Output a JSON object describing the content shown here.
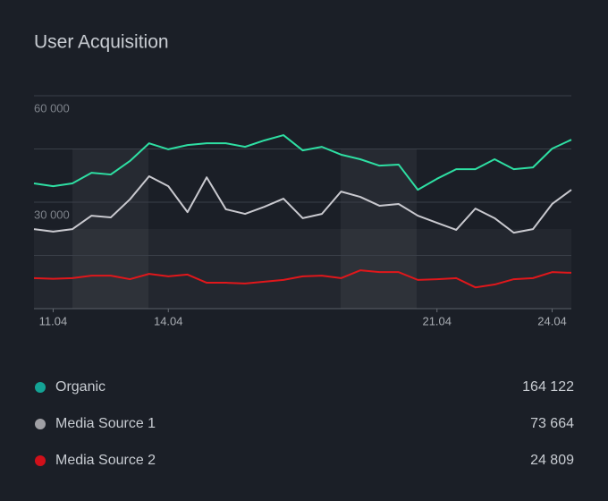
{
  "chart_data": {
    "type": "line",
    "title": "User Acquisition",
    "categories": [
      null,
      "11.04",
      null,
      null,
      null,
      null,
      null,
      "14.04",
      null,
      null,
      null,
      null,
      null,
      null,
      null,
      null,
      null,
      null,
      null,
      null,
      null,
      "21.04",
      null,
      null,
      null,
      null,
      null,
      "24.04",
      null
    ],
    "ylim": [
      0,
      60000
    ],
    "yticks": [
      {
        "value": 30000,
        "label": "30 000"
      },
      {
        "value": 60000,
        "label": "60 000"
      }
    ],
    "minor_yticks": [
      0,
      15000,
      45000
    ],
    "grid": true,
    "series": [
      {
        "name": "Organic",
        "color": "#2edfa3",
        "legend_color": "#14a395",
        "total": 164122,
        "total_label": "164 122",
        "values": [
          35300,
          34500,
          35300,
          38300,
          37800,
          41600,
          46600,
          44900,
          46100,
          46600,
          46600,
          45600,
          47400,
          48900,
          44600,
          45600,
          43400,
          42100,
          40300,
          40600,
          33500,
          36600,
          39300,
          39300,
          42100,
          39300,
          39800,
          45100,
          47600
        ]
      },
      {
        "name": "Media Source 1",
        "color": "#c9c9cf",
        "legend_color": "#a0a0a5",
        "total": 73664,
        "total_label": "73 664",
        "values": [
          22400,
          21700,
          22400,
          26200,
          25700,
          30800,
          37300,
          34500,
          27200,
          37000,
          28000,
          26700,
          28700,
          31000,
          25500,
          26700,
          33000,
          31500,
          29000,
          29500,
          26200,
          24200,
          22200,
          28200,
          25500,
          21400,
          22400,
          29500,
          33500
        ]
      },
      {
        "name": "Media Source 2",
        "color": "#e0171b",
        "legend_color": "#d0101a",
        "total": 24809,
        "total_label": "24 809",
        "values": [
          8600,
          8400,
          8600,
          9300,
          9300,
          8300,
          9800,
          9100,
          9600,
          7300,
          7300,
          7100,
          7600,
          8100,
          9100,
          9300,
          8600,
          10800,
          10300,
          10300,
          8100,
          8300,
          8600,
          6000,
          6800,
          8300,
          8600,
          10300,
          10100
        ]
      }
    ]
  }
}
